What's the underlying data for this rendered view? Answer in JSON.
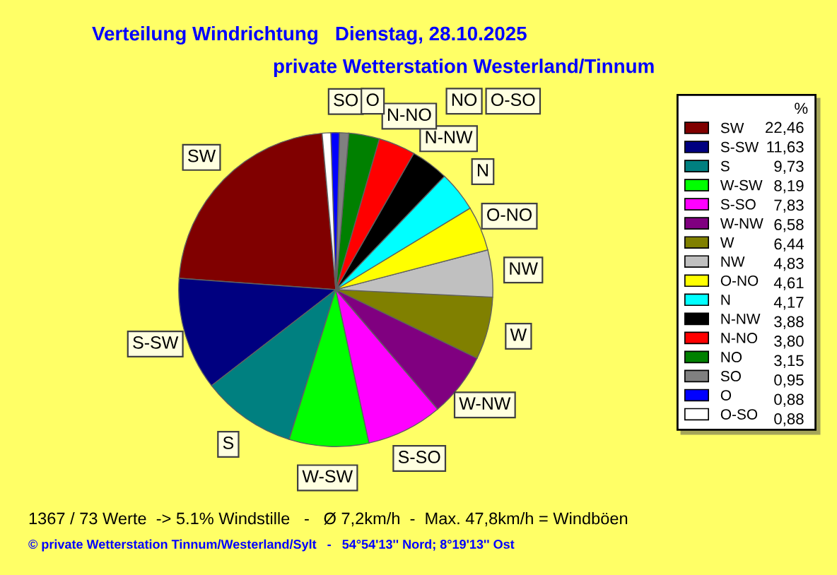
{
  "chart_data": {
    "type": "pie",
    "title": "Verteilung Windrichtung   Dienstag, 28.10.2025",
    "subtitle": "private Wetterstation Westerland/Tinnum",
    "categories": [
      "SW",
      "S-SW",
      "S",
      "W-SW",
      "S-SO",
      "W-NW",
      "W",
      "NW",
      "O-NO",
      "N",
      "N-NW",
      "N-NO",
      "NO",
      "SO",
      "O",
      "O-SO"
    ],
    "values": [
      22.46,
      11.63,
      9.73,
      8.19,
      7.83,
      6.58,
      6.44,
      4.83,
      4.61,
      4.17,
      3.88,
      3.8,
      3.15,
      0.95,
      0.88,
      0.88
    ],
    "value_labels": [
      "22,46",
      "11,63",
      "9,73",
      "8,19",
      "7,83",
      "6,58",
      "6,44",
      "4,83",
      "4,61",
      "4,17",
      "3,88",
      "3,80",
      "3,15",
      "0,95",
      "0,88",
      "0,88"
    ],
    "colors": [
      "#800000",
      "#000080",
      "#008080",
      "#00ff00",
      "#ff00ff",
      "#800080",
      "#808000",
      "#c0c0c0",
      "#ffff00",
      "#00ffff",
      "#000000",
      "#ff0000",
      "#008000",
      "#808080",
      "#0000ff",
      "#ffffff"
    ],
    "legend": "right",
    "legend_title": "%",
    "annotations": [
      "1367 / 73 Werte  -> 5.1% Windstille   -   Ø 7,2km/h  -  Max. 47,8km/h = Windböen",
      "© private Wetterstation Tinnum/Westerland/Sylt   -   54°54'13'' Nord; 8°19'13'' Ost"
    ]
  }
}
